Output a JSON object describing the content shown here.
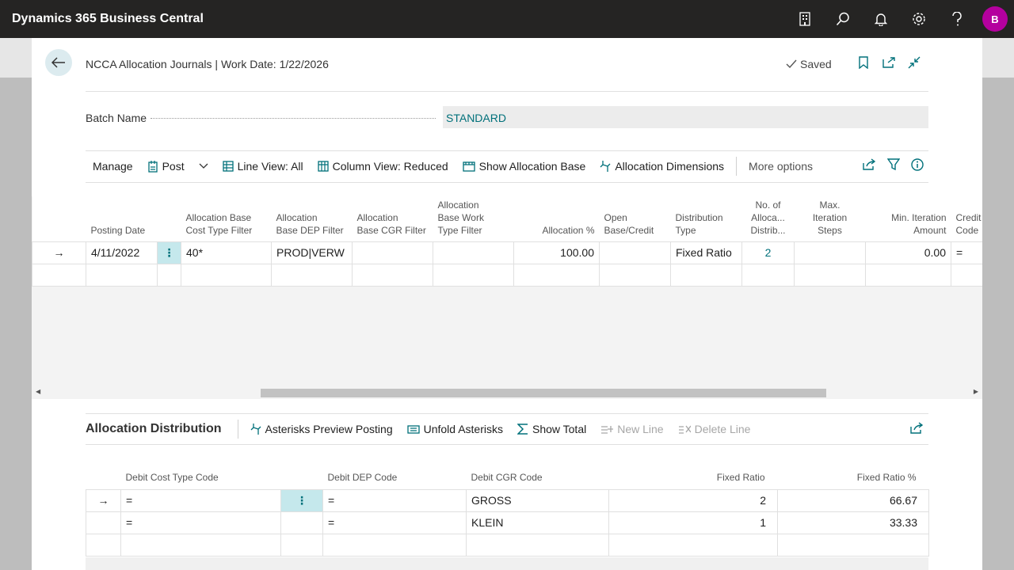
{
  "app": {
    "title": "Dynamics 365 Business Central",
    "user_initial": "B"
  },
  "page": {
    "title": "NCCA Allocation Journals | Work Date: 1/22/2026",
    "status": "Saved"
  },
  "batch": {
    "label": "Batch Name",
    "value": "STANDARD"
  },
  "actions": {
    "manage": "Manage",
    "post": "Post",
    "line_view": "Line View: All",
    "column_view": "Column View: Reduced",
    "show_allocation_base": "Show Allocation Base",
    "allocation_dimensions": "Allocation Dimensions",
    "more_options": "More options"
  },
  "grid": {
    "headers": {
      "posting_date": "Posting Date",
      "cost_type_filter": [
        "Allocation Base",
        "Cost Type Filter"
      ],
      "dep_filter": [
        "Allocation",
        "Base DEP Filter"
      ],
      "cgr_filter": [
        "Allocation",
        "Base CGR Filter"
      ],
      "work_type_filter": [
        "Allocation",
        "Base Work",
        "Type Filter"
      ],
      "allocation_pct": "Allocation %",
      "open_base": [
        "Open",
        "Base/Credit"
      ],
      "distribution_type": [
        "Distribution",
        "Type"
      ],
      "no_of_alloc": [
        "No. of",
        "Alloca...",
        "Distrib..."
      ],
      "max_iter": [
        "Max.",
        "Iteration",
        "Steps"
      ],
      "min_iter": [
        "Min. Iteration",
        "Amount"
      ],
      "credit_code": [
        "Credit",
        "Code"
      ]
    },
    "rows": [
      {
        "posting_date": "4/11/2022",
        "cost_type_filter": "40*",
        "dep_filter": "PROD|VERW",
        "cgr_filter": "",
        "work_type_filter": "",
        "allocation_pct": "100.00",
        "open_base": "",
        "distribution_type": "Fixed Ratio",
        "no_of_alloc": "2",
        "max_iter": "",
        "min_iter": "0.00",
        "credit_code": "="
      }
    ]
  },
  "distribution": {
    "title": "Allocation Distribution",
    "actions": {
      "asterisks_preview": "Asterisks Preview Posting",
      "unfold_asterisks": "Unfold Asterisks",
      "show_total": "Show Total",
      "new_line": "New Line",
      "delete_line": "Delete Line"
    },
    "headers": {
      "debit_cost_type": "Debit Cost Type Code",
      "debit_dep": "Debit DEP Code",
      "debit_cgr": "Debit CGR Code",
      "fixed_ratio": "Fixed Ratio",
      "fixed_ratio_pct": "Fixed Ratio %"
    },
    "rows": [
      {
        "debit_cost_type": "=",
        "debit_dep": "=",
        "debit_cgr": "GROSS",
        "fixed_ratio": "2",
        "fixed_ratio_pct": "66.67"
      },
      {
        "debit_cost_type": "=",
        "debit_dep": "=",
        "debit_cgr": "KLEIN",
        "fixed_ratio": "1",
        "fixed_ratio_pct": "33.33"
      }
    ]
  }
}
